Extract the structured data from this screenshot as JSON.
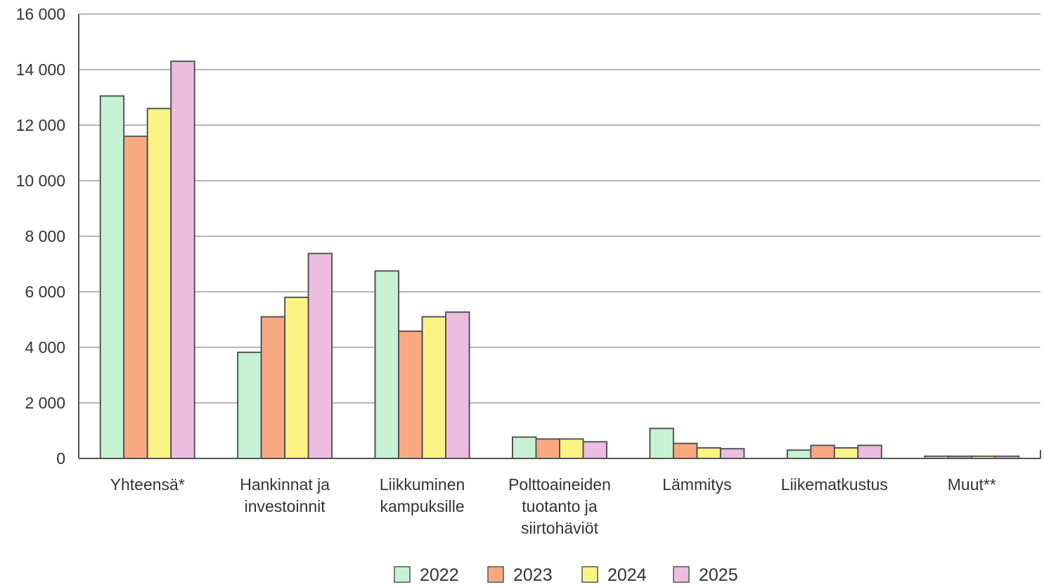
{
  "chart_data": {
    "type": "bar",
    "categories": [
      [
        "Yhteensä*"
      ],
      [
        "Hankinnat ja",
        "investoinnit"
      ],
      [
        "Liikkuminen",
        "kampuksille"
      ],
      [
        "Polttoaineiden",
        "tuotanto ja",
        "siirtohäviöt"
      ],
      [
        "Lämmitys"
      ],
      [
        "Liikematkustus"
      ],
      [
        "Muut**"
      ]
    ],
    "series": [
      {
        "name": "2022",
        "color": "#c6f2d3",
        "values": [
          13050,
          3820,
          6750,
          770,
          1080,
          300,
          80
        ]
      },
      {
        "name": "2023",
        "color": "#f9a982",
        "values": [
          11600,
          5100,
          4580,
          700,
          540,
          470,
          80
        ]
      },
      {
        "name": "2024",
        "color": "#fbf485",
        "values": [
          12600,
          5800,
          5100,
          700,
          380,
          380,
          80
        ]
      },
      {
        "name": "2025",
        "color": "#ecbde0",
        "values": [
          14300,
          7380,
          5270,
          600,
          350,
          470,
          80
        ]
      }
    ],
    "yticks": [
      "0",
      "2 000",
      "4 000",
      "6 000",
      "8 000",
      "10 000",
      "12 000",
      "14 000",
      "16 000"
    ],
    "ylim": [
      0,
      16000
    ],
    "grid": true,
    "legend": "bottom"
  }
}
